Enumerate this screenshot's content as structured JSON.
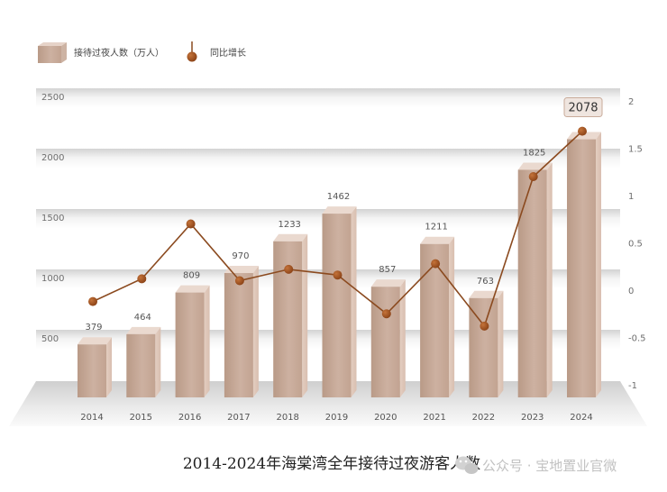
{
  "chart_data": {
    "type": "bar",
    "title": "2014-2024年海棠湾全年接待过夜游客人数",
    "categories": [
      "2014",
      "2015",
      "2016",
      "2017",
      "2018",
      "2019",
      "2020",
      "2021",
      "2022",
      "2023",
      "2024"
    ],
    "series": [
      {
        "name": "接待过夜人数（万人）",
        "type": "bar",
        "axis": "left",
        "values": [
          379,
          464,
          809,
          970,
          1233,
          1462,
          857,
          1211,
          763,
          1825,
          2078
        ],
        "data_labels": [
          "379",
          "464",
          "809",
          "970",
          "1233",
          "1462",
          "857",
          "1211",
          "763",
          "1825",
          "2078"
        ]
      },
      {
        "name": "同比增长",
        "type": "line",
        "axis": "right",
        "values": [
          -0.12,
          0.12,
          0.7,
          0.1,
          0.22,
          0.16,
          -0.25,
          0.28,
          -0.38,
          1.2,
          1.68
        ]
      }
    ],
    "yaxis_left": {
      "ticks": [
        500,
        1000,
        1500,
        2000,
        2500
      ],
      "ylim": [
        0,
        2500
      ]
    },
    "yaxis_right": {
      "ticks": [
        -1,
        -0.5,
        0,
        0.5,
        1,
        1.5,
        2
      ],
      "tick_labels": [
        "-1",
        "-0.5",
        "0",
        "0.5",
        "1",
        "1.5",
        "2"
      ],
      "ylim": [
        -1,
        2
      ]
    },
    "legend_position": "top-left",
    "highlight": {
      "category": "2024",
      "label": "2078"
    },
    "colors": {
      "bar": "#c9ab9a",
      "line": "#8b4a1f",
      "point": "#a0521d"
    }
  },
  "watermark": {
    "icon": "wechat-icon",
    "text": "公众号 · 宝地置业官微"
  }
}
